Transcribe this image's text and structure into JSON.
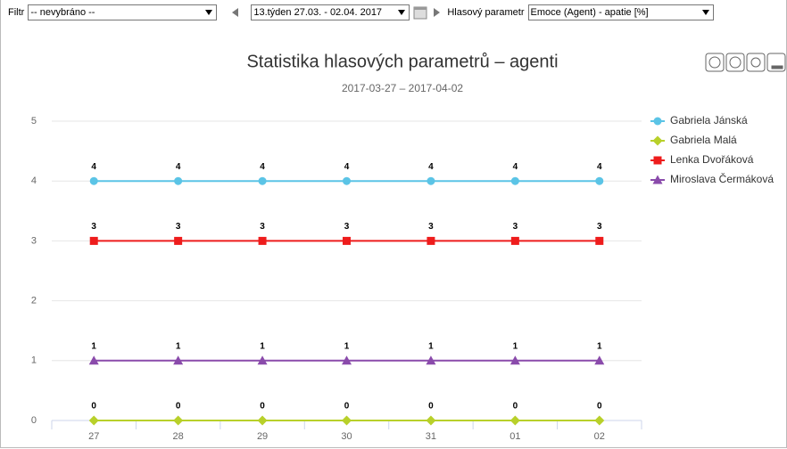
{
  "toolbar": {
    "filter_label": "Filtr",
    "filter_value": "-- nevybráno --",
    "week_value": "13.týden 27.03. - 02.04. 2017",
    "param_label": "Hlasový parametr",
    "param_value": "Emoce (Agent) - apatie [%]"
  },
  "chart_data": {
    "type": "line",
    "title": "Statistika hlasových parametrů – agenti",
    "subtitle": "2017-03-27 – 2017-04-02",
    "categories": [
      "27",
      "28",
      "29",
      "30",
      "31",
      "01",
      "02"
    ],
    "series": [
      {
        "name": "Gabriela Jánská",
        "color": "#5bc4e6",
        "marker": "circle",
        "values": [
          4,
          4,
          4,
          4,
          4,
          4,
          4
        ]
      },
      {
        "name": "Gabriela Malá",
        "color": "#b8d02a",
        "marker": "diamond",
        "values": [
          0,
          0,
          0,
          0,
          0,
          0,
          0
        ]
      },
      {
        "name": "Lenka Dvořáková",
        "color": "#ee1c1c",
        "marker": "square",
        "values": [
          3,
          3,
          3,
          3,
          3,
          3,
          3
        ]
      },
      {
        "name": "Miroslava Čermáková",
        "color": "#8a4bab",
        "marker": "triangle",
        "values": [
          1,
          1,
          1,
          1,
          1,
          1,
          1
        ]
      }
    ],
    "ylim": [
      0,
      5
    ],
    "yticks": [
      0,
      1,
      2,
      3,
      4,
      5
    ],
    "grid": true,
    "legend": "right",
    "data_labels": true
  }
}
